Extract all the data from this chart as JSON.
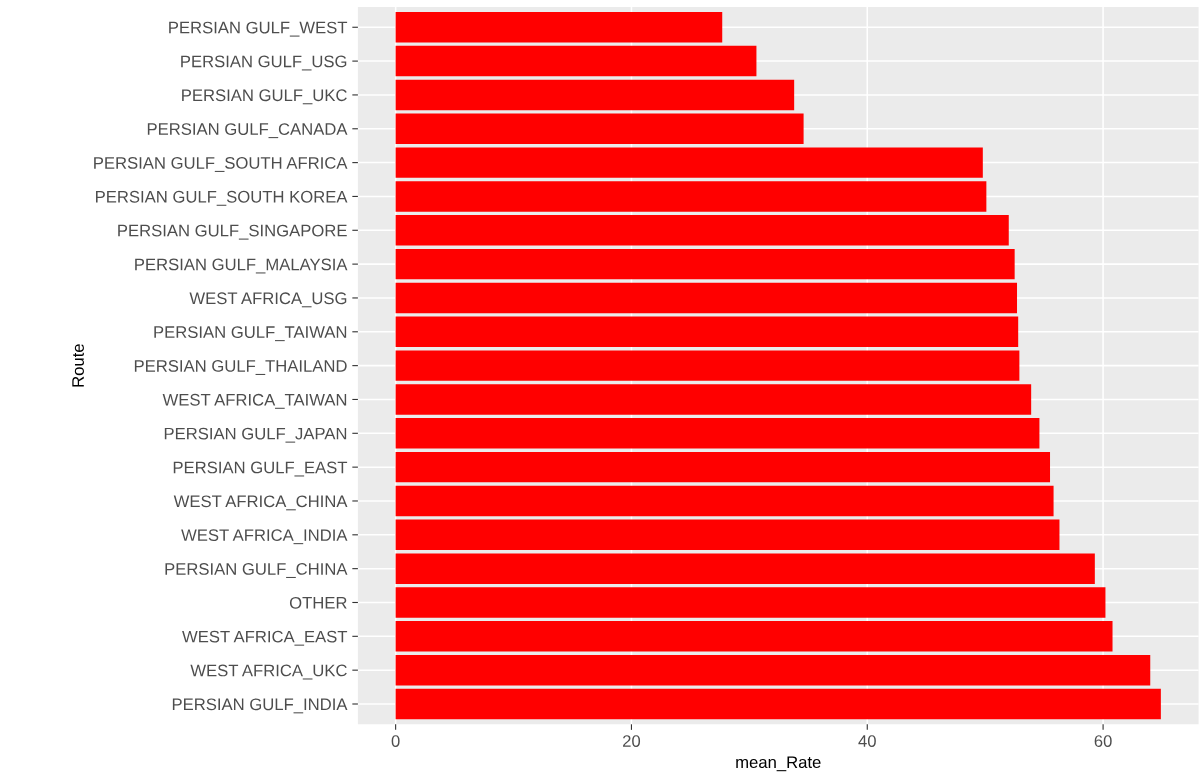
{
  "chart_data": {
    "type": "bar",
    "orientation": "horizontal",
    "xlabel": "mean_Rate",
    "ylabel": "Route",
    "categories": [
      "PERSIAN GULF_WEST",
      "PERSIAN GULF_USG",
      "PERSIAN GULF_UKC",
      "PERSIAN GULF_CANADA",
      "PERSIAN GULF_SOUTH AFRICA",
      "PERSIAN GULF_SOUTH KOREA",
      "PERSIAN GULF_SINGAPORE",
      "PERSIAN GULF_MALAYSIA",
      "WEST AFRICA_USG",
      "PERSIAN GULF_TAIWAN",
      "PERSIAN GULF_THAILAND",
      "WEST AFRICA_TAIWAN",
      "PERSIAN GULF_JAPAN",
      "PERSIAN GULF_EAST",
      "WEST AFRICA_CHINA",
      "WEST AFRICA_INDIA",
      "PERSIAN GULF_CHINA",
      "OTHER",
      "WEST AFRICA_EAST",
      "WEST AFRICA_UKC",
      "PERSIAN GULF_INDIA"
    ],
    "values": [
      27.7,
      30.6,
      33.8,
      34.6,
      49.8,
      50.1,
      52.0,
      52.5,
      52.7,
      52.8,
      52.9,
      53.9,
      54.6,
      55.5,
      55.8,
      56.3,
      59.3,
      60.2,
      60.8,
      64.0,
      64.9
    ],
    "color": "#ff0000",
    "xlim": [
      -3.2,
      68.1
    ],
    "xticks": [
      0,
      20,
      40,
      60
    ],
    "grid": true
  }
}
